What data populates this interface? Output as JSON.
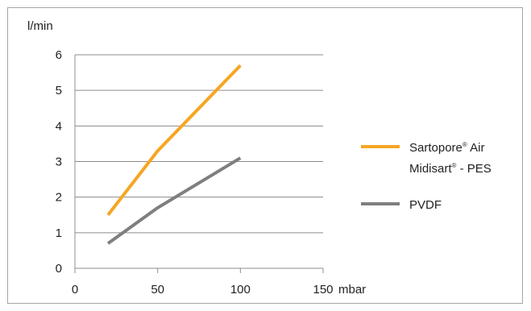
{
  "chart_data": {
    "type": "line",
    "ylabel": "l/min",
    "xlabel": "mbar",
    "xlim": [
      0,
      150
    ],
    "ylim": [
      0,
      6
    ],
    "x_ticks": [
      "0",
      "50",
      "100",
      "150"
    ],
    "y_ticks": [
      "0",
      "1",
      "2",
      "3",
      "4",
      "5",
      "6"
    ],
    "grid": "horizontal",
    "legend_position": "right",
    "series": [
      {
        "name": "Sartopore® Air Midisart® - PES",
        "legend_line1": "Sartopore",
        "legend_line1_sup": "®",
        "legend_line1_rest": " Air",
        "legend_line2": "Midisart",
        "legend_line2_sup": "®",
        "legend_line2_rest": " - PES",
        "color": "#f5a623",
        "x": [
          20,
          50,
          100
        ],
        "y": [
          1.5,
          3.3,
          5.7
        ]
      },
      {
        "name": "PVDF",
        "color": "#7f7f7f",
        "x": [
          20,
          50,
          100
        ],
        "y": [
          0.7,
          1.7,
          3.1
        ]
      }
    ]
  }
}
